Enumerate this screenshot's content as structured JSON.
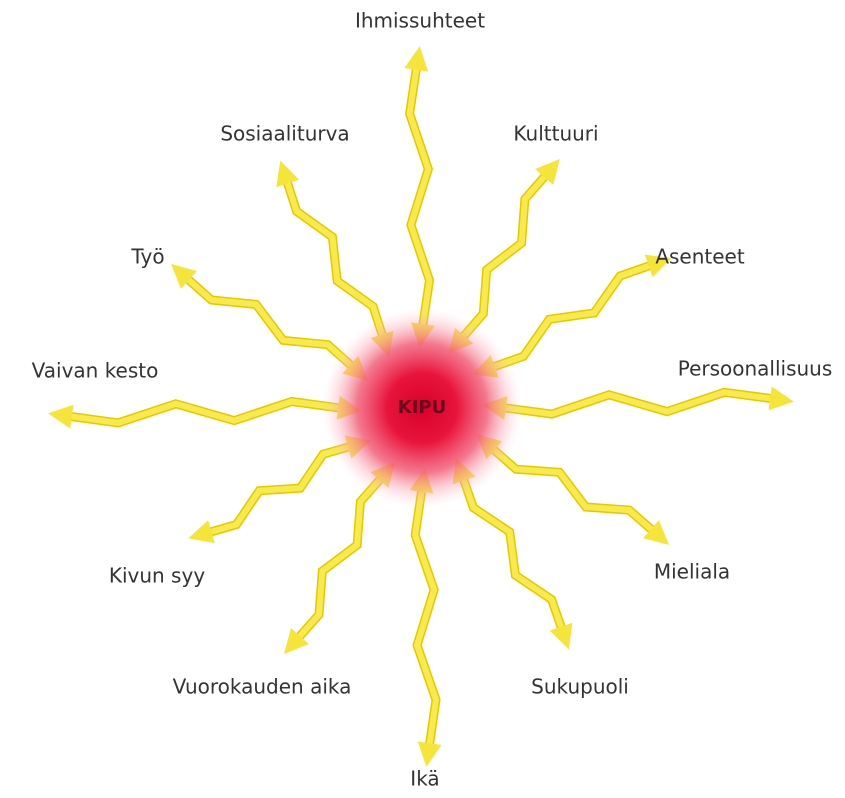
{
  "center": {
    "label": "KIPU"
  },
  "nodes": [
    {
      "label": "Ihmissuhteet"
    },
    {
      "label": "Kulttuuri"
    },
    {
      "label": "Asenteet"
    },
    {
      "label": "Persoonallisuus"
    },
    {
      "label": "Mieliala"
    },
    {
      "label": "Sukupuoli"
    },
    {
      "label": "Ikä"
    },
    {
      "label": "Vuorokauden aika"
    },
    {
      "label": "Kivun syy"
    },
    {
      "label": "Vaivan kesto"
    },
    {
      "label": "Työ"
    },
    {
      "label": "Sosiaaliturva"
    }
  ]
}
